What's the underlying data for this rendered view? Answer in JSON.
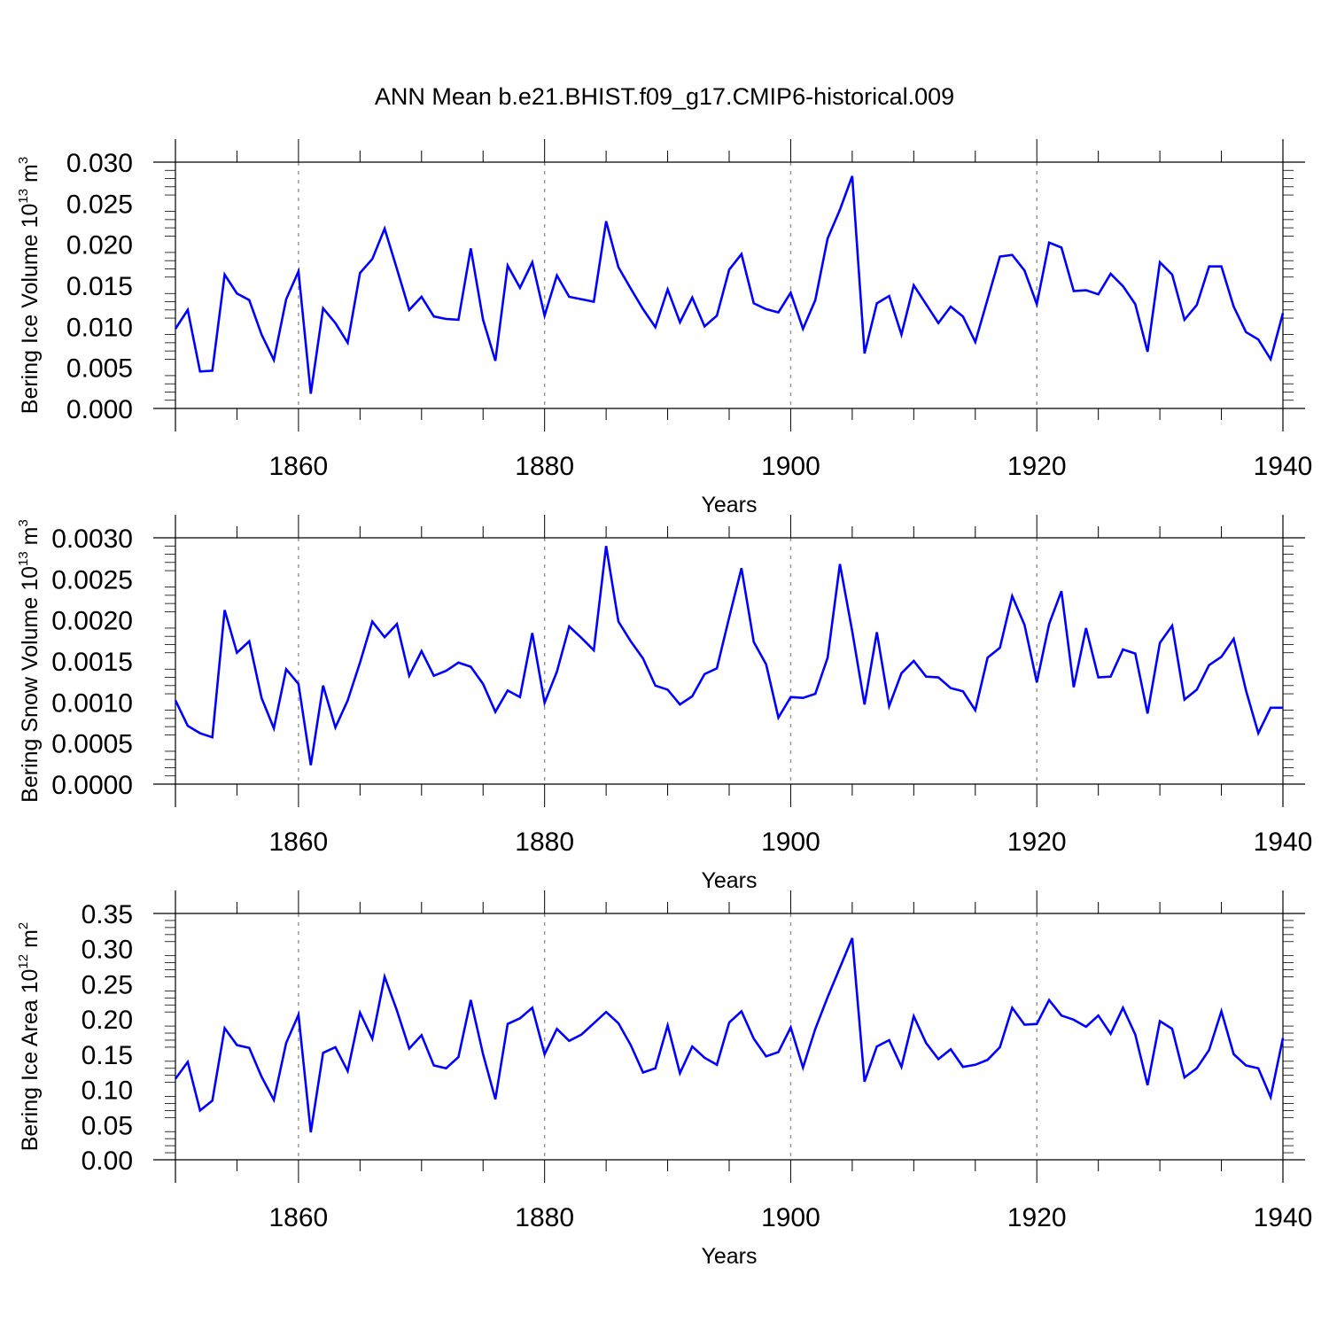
{
  "figure": {
    "title": "ANN Mean b.e21.BHIST.f09_g17.CMIP6-historical.009"
  },
  "colors": {
    "series": "#0000ff",
    "axes": "#000000",
    "gridlines": "#999999"
  },
  "chart_data": [
    {
      "type": "line",
      "id": "ice-volume",
      "xlabel": "Years",
      "ylabel": "Bering Ice Volume",
      "ylabel_unit_base": "10",
      "ylabel_unit_exp": "13",
      "ylabel_unit_tail": "m",
      "ylabel_unit_tail_exp": "3",
      "xlim": [
        1850,
        1940
      ],
      "ylim": [
        0,
        0.03
      ],
      "yticks": [
        "0.000",
        "0.005",
        "0.010",
        "0.015",
        "0.020",
        "0.025",
        "0.030"
      ],
      "ytick_values": [
        0,
        0.005,
        0.01,
        0.015,
        0.02,
        0.025,
        0.03
      ],
      "xticks": [
        "1860",
        "1880",
        "1900",
        "1920",
        "1940"
      ],
      "xtick_values": [
        1860,
        1880,
        1900,
        1920,
        1940
      ],
      "grid": "vertical dashed at major x ticks",
      "x_start": 1850,
      "values": [
        0.0097,
        0.012,
        0.0045,
        0.0046,
        0.0163,
        0.014,
        0.0132,
        0.009,
        0.0059,
        0.0133,
        0.0167,
        0.0018,
        0.0122,
        0.0104,
        0.008,
        0.0165,
        0.0182,
        0.0219,
        0.017,
        0.012,
        0.0136,
        0.0112,
        0.0109,
        0.0108,
        0.0195,
        0.0108,
        0.0058,
        0.0174,
        0.0147,
        0.0178,
        0.0113,
        0.0162,
        0.0136,
        0.0133,
        0.013,
        0.0228,
        0.0172,
        0.0146,
        0.0121,
        0.0099,
        0.0145,
        0.0105,
        0.0135,
        0.01,
        0.0113,
        0.0169,
        0.0188,
        0.0128,
        0.0121,
        0.0117,
        0.0141,
        0.0097,
        0.0132,
        0.0207,
        0.0242,
        0.0283,
        0.0067,
        0.0128,
        0.0137,
        0.009,
        0.015,
        0.0127,
        0.0104,
        0.0124,
        0.0112,
        0.0081,
        0.0133,
        0.0185,
        0.0187,
        0.0168,
        0.0127,
        0.0202,
        0.0196,
        0.0143,
        0.0144,
        0.0139,
        0.0164,
        0.0149,
        0.0127,
        0.0069,
        0.0178,
        0.0163,
        0.0108,
        0.0126,
        0.0173,
        0.0173,
        0.0124,
        0.0093,
        0.0084,
        0.006,
        0.0116
      ]
    },
    {
      "type": "line",
      "id": "snow-volume",
      "xlabel": "Years",
      "ylabel": "Bering Snow Volume",
      "ylabel_unit_base": "10",
      "ylabel_unit_exp": "13",
      "ylabel_unit_tail": "m",
      "ylabel_unit_tail_exp": "3",
      "xlim": [
        1850,
        1940
      ],
      "ylim": [
        0,
        0.003
      ],
      "yticks": [
        "0.0000",
        "0.0005",
        "0.0010",
        "0.0015",
        "0.0020",
        "0.0025",
        "0.0030"
      ],
      "ytick_values": [
        0,
        0.0005,
        0.001,
        0.0015,
        0.002,
        0.0025,
        0.003
      ],
      "xticks": [
        "1860",
        "1880",
        "1900",
        "1920",
        "1940"
      ],
      "xtick_values": [
        1860,
        1880,
        1900,
        1920,
        1940
      ],
      "grid": "vertical dashed at major x ticks",
      "x_start": 1850,
      "values": [
        0.00102,
        0.00071,
        0.00062,
        0.00057,
        0.00212,
        0.0016,
        0.00174,
        0.00105,
        0.00068,
        0.0014,
        0.00122,
        0.00023,
        0.0012,
        0.00069,
        0.00102,
        0.00148,
        0.00198,
        0.00179,
        0.00195,
        0.00132,
        0.00162,
        0.00132,
        0.00138,
        0.00148,
        0.00143,
        0.00122,
        0.00088,
        0.00114,
        0.00106,
        0.00184,
        0.00099,
        0.00137,
        0.00192,
        0.00178,
        0.00163,
        0.0029,
        0.00198,
        0.00174,
        0.00153,
        0.0012,
        0.00115,
        0.00097,
        0.00107,
        0.00134,
        0.00141,
        0.00203,
        0.00263,
        0.00173,
        0.00146,
        0.00081,
        0.00106,
        0.00105,
        0.0011,
        0.00154,
        0.00268,
        0.00186,
        0.00097,
        0.00185,
        0.00095,
        0.00135,
        0.0015,
        0.00131,
        0.0013,
        0.00117,
        0.00113,
        0.0009,
        0.00154,
        0.00166,
        0.00229,
        0.00194,
        0.00124,
        0.00195,
        0.00235,
        0.00118,
        0.0019,
        0.0013,
        0.00131,
        0.00164,
        0.00159,
        0.00086,
        0.00172,
        0.00193,
        0.00103,
        0.00115,
        0.00145,
        0.00155,
        0.00177,
        0.00114,
        0.00062,
        0.00093,
        0.00093
      ]
    },
    {
      "type": "line",
      "id": "ice-area",
      "xlabel": "Years",
      "ylabel": "Bering Ice Area",
      "ylabel_unit_base": "10",
      "ylabel_unit_exp": "12",
      "ylabel_unit_tail": "m",
      "ylabel_unit_tail_exp": "2",
      "xlim": [
        1850,
        1940
      ],
      "ylim": [
        0,
        0.35
      ],
      "yticks": [
        "0.00",
        "0.05",
        "0.10",
        "0.15",
        "0.20",
        "0.25",
        "0.30",
        "0.35"
      ],
      "ytick_values": [
        0,
        0.05,
        0.1,
        0.15,
        0.2,
        0.25,
        0.3,
        0.35
      ],
      "xticks": [
        "1860",
        "1880",
        "1900",
        "1920",
        "1940"
      ],
      "xtick_values": [
        1860,
        1880,
        1900,
        1920,
        1940
      ],
      "grid": "vertical dashed at major x ticks",
      "x_start": 1850,
      "values": [
        0.115,
        0.139,
        0.07,
        0.084,
        0.187,
        0.163,
        0.159,
        0.118,
        0.085,
        0.166,
        0.206,
        0.039,
        0.152,
        0.16,
        0.126,
        0.209,
        0.172,
        0.26,
        0.212,
        0.158,
        0.177,
        0.134,
        0.13,
        0.146,
        0.227,
        0.15,
        0.086,
        0.193,
        0.201,
        0.216,
        0.15,
        0.186,
        0.169,
        0.178,
        0.194,
        0.21,
        0.194,
        0.163,
        0.124,
        0.13,
        0.191,
        0.123,
        0.161,
        0.145,
        0.135,
        0.195,
        0.211,
        0.172,
        0.147,
        0.153,
        0.188,
        0.131,
        0.186,
        0.231,
        0.273,
        0.315,
        0.111,
        0.161,
        0.17,
        0.132,
        0.204,
        0.166,
        0.143,
        0.157,
        0.132,
        0.135,
        0.142,
        0.16,
        0.216,
        0.192,
        0.193,
        0.227,
        0.205,
        0.199,
        0.189,
        0.205,
        0.179,
        0.216,
        0.178,
        0.106,
        0.197,
        0.186,
        0.117,
        0.13,
        0.156,
        0.211,
        0.15,
        0.134,
        0.13,
        0.089,
        0.173
      ]
    }
  ]
}
